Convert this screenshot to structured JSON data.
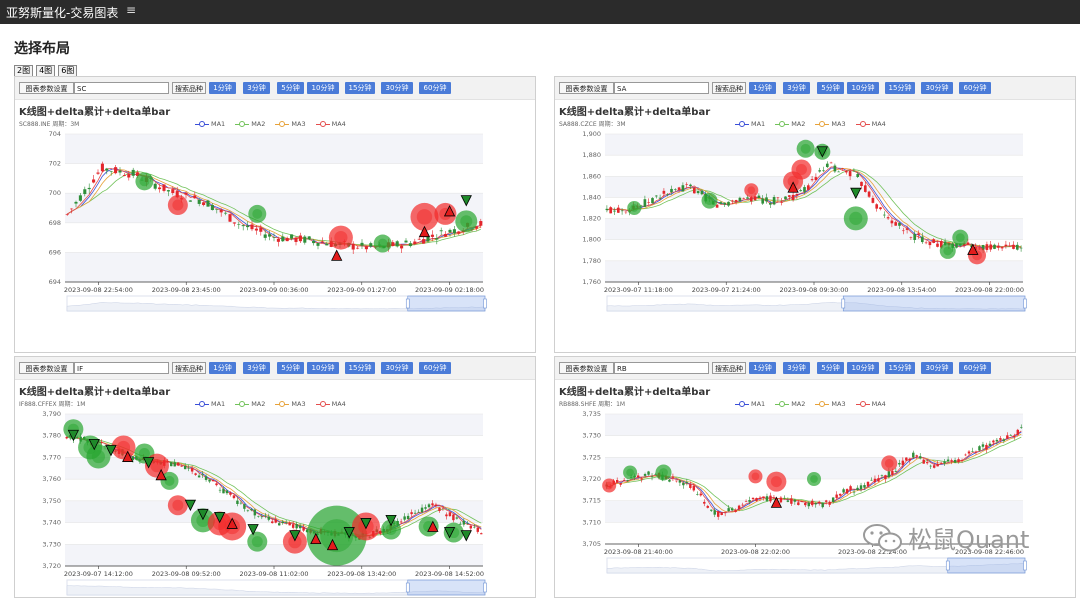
{
  "app": {
    "title": "亚努斯量化-交易图表",
    "menu_icon": "hamburger-icon",
    "menu_glyph": "≡"
  },
  "page": {
    "title": "选择布局"
  },
  "layouts": [
    "2图",
    "4图",
    "6图"
  ],
  "toolbar": {
    "settings_label": "图表参数设置",
    "search_label": "搜索品种",
    "periods": [
      "1分钟",
      "3分钟",
      "5分钟",
      "10分钟",
      "15分钟",
      "30分钟",
      "60分钟"
    ]
  },
  "colors": {
    "up": "#e3262c",
    "down": "#2f8f3a",
    "ma1": "#3b4fd8",
    "ma2": "#72c25a",
    "ma3": "#e7a23a",
    "ma4": "#e44d4d",
    "period_button": "#4a7bd8",
    "bubble_red": "#f22a2a",
    "bubble_green": "#27a52f"
  },
  "legend": [
    "MA1",
    "MA2",
    "MA3",
    "MA4"
  ],
  "charts": [
    {
      "symbol_input": "SC",
      "title": "K线图+delta累计+delta单bar",
      "subtitle": "SC888.INE 周期：3M",
      "yticks": [
        "704",
        "702",
        "700",
        "698",
        "696",
        "694"
      ],
      "xticks": [
        "2023-09-08 22:54:00",
        "2023-09-08 23:45:00",
        "2023-09-09 00:36:00",
        "2023-09-09 01:27:00",
        "2023-09-09 02:18:00"
      ]
    },
    {
      "symbol_input": "SA",
      "title": "K线图+delta累计+delta单bar",
      "subtitle": "SA888.CZCE 周期：3M",
      "yticks": [
        "1,900",
        "1,880",
        "1,860",
        "1,840",
        "1,820",
        "1,800",
        "1,780",
        "1,760"
      ],
      "xticks": [
        "2023-09-07 11:18:00",
        "2023-09-07 21:24:00",
        "2023-09-08 09:30:00",
        "2023-09-08 13:54:00",
        "2023-09-08 22:00:00"
      ]
    },
    {
      "symbol_input": "IF",
      "title": "K线图+delta累计+delta单bar",
      "subtitle": "IF888.CFFEX 周期：1M",
      "yticks": [
        "3,790",
        "3,780",
        "3,770",
        "3,760",
        "3,750",
        "3,740",
        "3,730",
        "3,720"
      ],
      "xticks": [
        "2023-09-07 14:12:00",
        "2023-09-08 09:52:00",
        "2023-09-08 11:02:00",
        "2023-09-08 13:42:00",
        "2023-09-08 14:52:00"
      ]
    },
    {
      "symbol_input": "RB",
      "title": "K线图+delta累计+delta单bar",
      "subtitle": "RB888.SHFE 周期：1M",
      "yticks": [
        "3,735",
        "3,730",
        "3,725",
        "3,720",
        "3,715",
        "3,710",
        "3,705"
      ],
      "xticks": [
        "2023-09-08 21:40:00",
        "2023-09-08 22:02:00",
        "2023-09-08 22:24:00",
        "2023-09-08 22:46:00"
      ]
    }
  ],
  "watermark": {
    "text": "松鼠Quant",
    "icon": "wechat-icon"
  }
}
